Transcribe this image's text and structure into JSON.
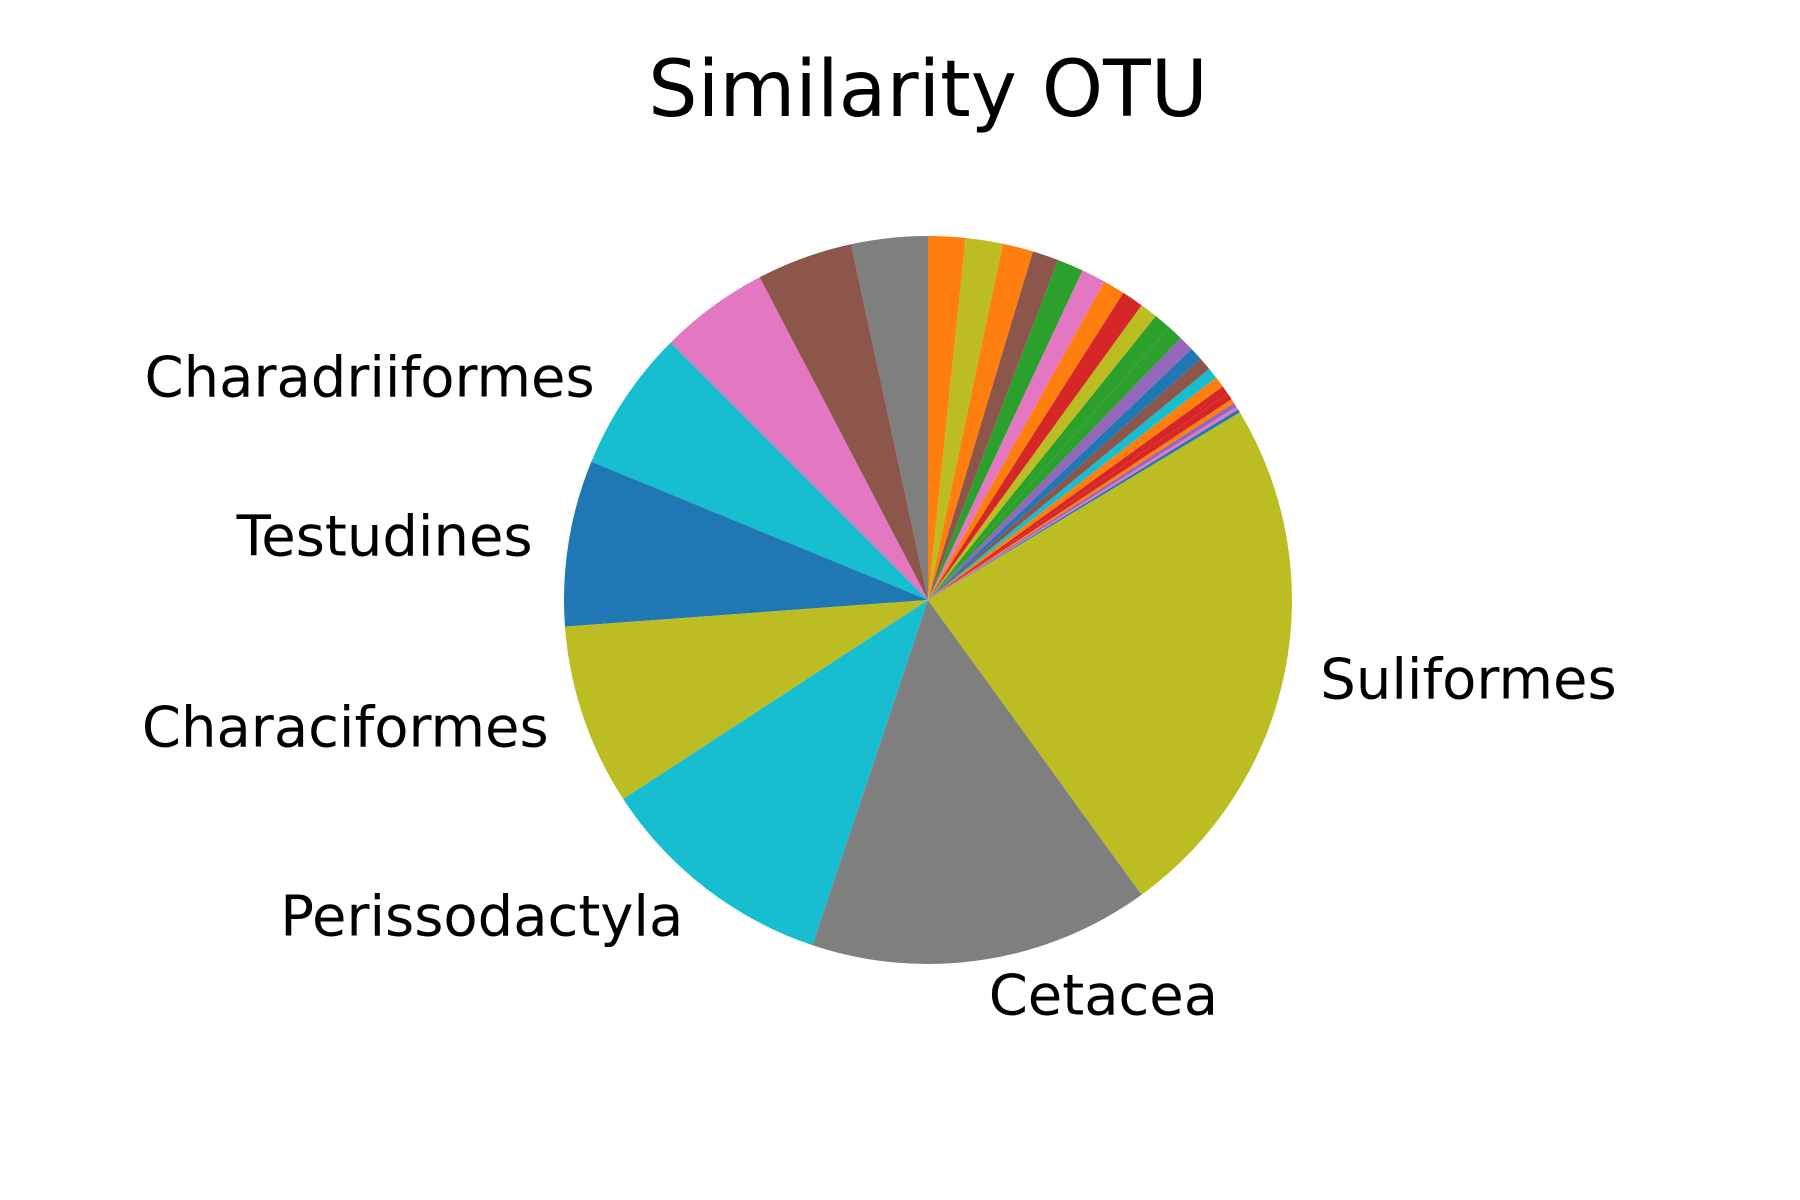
{
  "chart_data": {
    "type": "pie",
    "title": "Similarity OTU",
    "start_angle_deg": 90,
    "direction": "counterclockwise",
    "slices": [
      {
        "label": "",
        "value": 3.5,
        "color": "#7f7f7f"
      },
      {
        "label": "",
        "value": 4.4,
        "color": "#8c564b"
      },
      {
        "label": "",
        "value": 5.0,
        "color": "#e377c2"
      },
      {
        "label": "Charadriiformes",
        "value": 6.5,
        "color": "#17becf"
      },
      {
        "label": "Testudines",
        "value": 7.6,
        "color": "#1f77b4"
      },
      {
        "label": "Characiformes",
        "value": 8.3,
        "color": "#bcbd22"
      },
      {
        "label": "Perissodactyla",
        "value": 11.0,
        "color": "#17becf"
      },
      {
        "label": "Cetacea",
        "value": 15.6,
        "color": "#7f7f7f"
      },
      {
        "label": "Suliformes",
        "value": 24.4,
        "color": "#bcbd22"
      },
      {
        "label": "",
        "value": 0.15,
        "color": "#1f77b4"
      },
      {
        "label": "",
        "value": 0.15,
        "color": "#e377c2"
      },
      {
        "label": "",
        "value": 0.2,
        "color": "#9467bd"
      },
      {
        "label": "",
        "value": 0.2,
        "color": "#ff7f0e"
      },
      {
        "label": "",
        "value": 0.3,
        "color": "#d62728"
      },
      {
        "label": "",
        "value": 0.4,
        "color": "#d62728"
      },
      {
        "label": "",
        "value": 0.5,
        "color": "#ff7f0e"
      },
      {
        "label": "",
        "value": 0.5,
        "color": "#17becf"
      },
      {
        "label": "",
        "value": 0.6,
        "color": "#8c564b"
      },
      {
        "label": "",
        "value": 0.6,
        "color": "#1f77b4"
      },
      {
        "label": "",
        "value": 0.7,
        "color": "#9467bd"
      },
      {
        "label": "",
        "value": 0.7,
        "color": "#2ca02c"
      },
      {
        "label": "",
        "value": 0.8,
        "color": "#2ca02c"
      },
      {
        "label": "",
        "value": 0.8,
        "color": "#bcbd22"
      },
      {
        "label": "",
        "value": 1.0,
        "color": "#d62728"
      },
      {
        "label": "",
        "value": 1.0,
        "color": "#ff7f0e"
      },
      {
        "label": "",
        "value": 1.1,
        "color": "#e377c2"
      },
      {
        "label": "",
        "value": 1.2,
        "color": "#2ca02c"
      },
      {
        "label": "",
        "value": 1.2,
        "color": "#8c564b"
      },
      {
        "label": "",
        "value": 1.4,
        "color": "#ff7f0e"
      },
      {
        "label": "",
        "value": 1.7,
        "color": "#bcbd22"
      },
      {
        "label": "",
        "value": 1.7,
        "color": "#ff7f0e"
      }
    ]
  }
}
